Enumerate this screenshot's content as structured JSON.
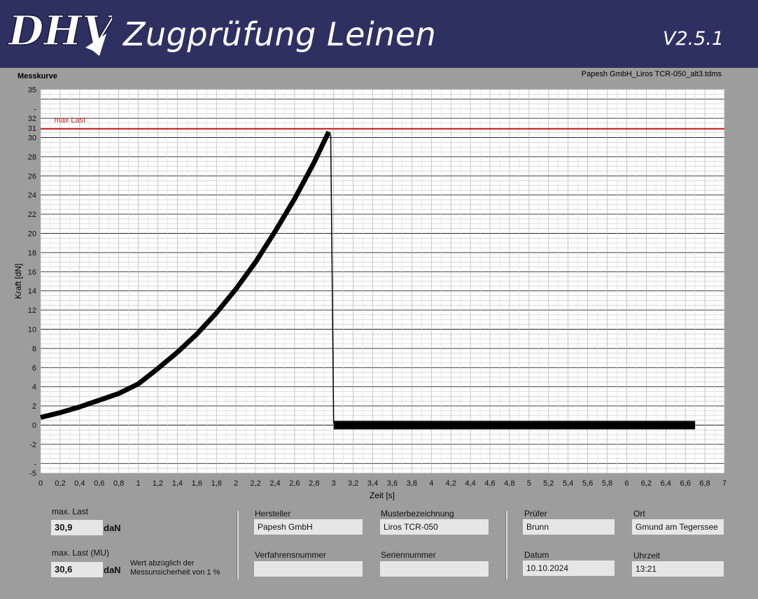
{
  "header": {
    "logo_text": "DHV",
    "title": "Zugprüfung Leinen",
    "version": "V2.5.1",
    "bg_color": "#2f3062"
  },
  "chart_panel": {
    "title": "Messkurve",
    "filename": "Papesh GmbH_Liros TCR-050_alt3.tdms"
  },
  "chart_data": {
    "type": "line",
    "xlabel": "Zeit [s]",
    "ylabel": "Kraft [dN]",
    "xlim": [
      0,
      7
    ],
    "ylim": [
      -5,
      35
    ],
    "x_ticks": [
      "0",
      "0,2",
      "0,4",
      "0,6",
      "0,8",
      "1",
      "1,2",
      "1,4",
      "1,6",
      "1,8",
      "2",
      "2,2",
      "2,4",
      "2,6",
      "2,8",
      "3",
      "3,2",
      "3,4",
      "3,6",
      "3,8",
      "4",
      "4,2",
      "4,4",
      "4,6",
      "4,8",
      "5",
      "5,2",
      "5,4",
      "5,6",
      "5,8",
      "6",
      "6,2",
      "6,4",
      "6,6",
      "6,8",
      "7"
    ],
    "y_ticks": [
      {
        "v": 35,
        "label": "35"
      },
      {
        "v": 33,
        "label": "-"
      },
      {
        "v": 32,
        "label": "32"
      },
      {
        "v": 31,
        "label": "31"
      },
      {
        "v": 30,
        "label": "30"
      },
      {
        "v": 28,
        "label": "28"
      },
      {
        "v": 26,
        "label": "26"
      },
      {
        "v": 24,
        "label": "24"
      },
      {
        "v": 22,
        "label": "22"
      },
      {
        "v": 20,
        "label": "20"
      },
      {
        "v": 18,
        "label": "18"
      },
      {
        "v": 16,
        "label": "16"
      },
      {
        "v": 14,
        "label": "14"
      },
      {
        "v": 12,
        "label": "12"
      },
      {
        "v": 10,
        "label": "10"
      },
      {
        "v": 8,
        "label": "8"
      },
      {
        "v": 6,
        "label": "6"
      },
      {
        "v": 4,
        "label": "4"
      },
      {
        "v": 2,
        "label": "2"
      },
      {
        "v": 0,
        "label": "0"
      },
      {
        "v": -2,
        "label": "-2"
      },
      {
        "v": -4,
        "label": "-"
      },
      {
        "v": -5,
        "label": "-5"
      }
    ],
    "max_line": {
      "label": "max Last",
      "value": 30.9,
      "color": "#cc1f1f"
    },
    "series": [
      {
        "color": "#000000",
        "x": [
          0,
          0.2,
          0.4,
          0.6,
          0.8,
          1.0,
          1.2,
          1.4,
          1.6,
          1.8,
          2.0,
          2.2,
          2.4,
          2.6,
          2.8,
          2.95,
          2.97,
          3.0,
          3.2,
          4.0,
          5.0,
          6.0,
          6.7
        ],
        "values": [
          0.8,
          1.3,
          1.9,
          2.6,
          3.3,
          4.3,
          5.9,
          7.6,
          9.5,
          11.7,
          14.2,
          17.0,
          20.2,
          23.6,
          27.4,
          30.6,
          30.2,
          0.2,
          0.1,
          0.0,
          0.0,
          0.0,
          0.0
        ]
      }
    ]
  },
  "bottom": {
    "max_last_label": "max. Last",
    "max_last_value": "30,9",
    "max_last_unit": "daN",
    "max_last_mu_label": "max. Last (MU)",
    "max_last_mu_value": "30,6",
    "max_last_mu_unit": "daN",
    "mu_note_line1": "Wert abzüglich der",
    "mu_note_line2": "Messunsicherheit von 1 %",
    "hersteller_label": "Hersteller",
    "hersteller_value": "Papesh GmbH",
    "muster_label": "Musterbezeichnung",
    "muster_value": "Liros TCR-050",
    "verfahren_label": "Verfahrensnummer",
    "verfahren_value": "",
    "serien_label": "Seriennummer",
    "serien_value": "",
    "pruefer_label": "Prüfer",
    "pruefer_value": "Brunn",
    "ort_label": "Ort",
    "ort_value": "Gmund am Tegerssee",
    "datum_label": "Datum",
    "datum_value": "10.10.2024",
    "uhrzeit_label": "Uhrzeit",
    "uhrzeit_value": "13:21"
  }
}
